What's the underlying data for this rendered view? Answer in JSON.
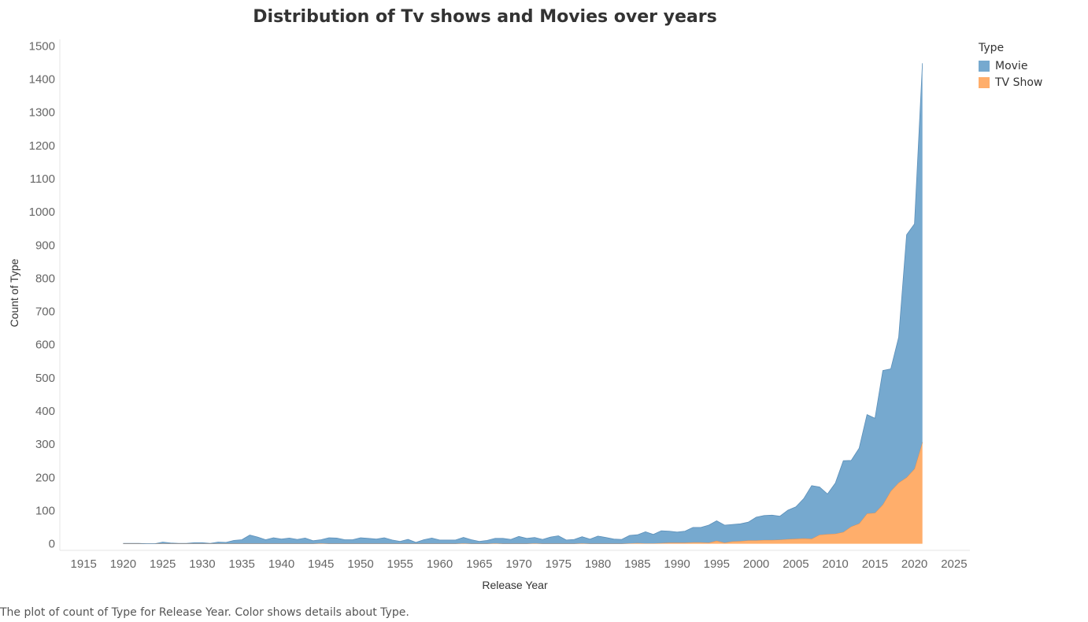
{
  "chart_data": {
    "type": "area",
    "title": "Distribution of Tv shows and Movies over years",
    "xlabel": "Release Year",
    "ylabel": "Count of Type",
    "xlim": [
      1912,
      2027
    ],
    "ylim": [
      -20,
      1520
    ],
    "x_ticks": [
      1915,
      1920,
      1925,
      1930,
      1935,
      1940,
      1945,
      1950,
      1955,
      1960,
      1965,
      1970,
      1975,
      1980,
      1985,
      1990,
      1995,
      2000,
      2005,
      2010,
      2015,
      2020,
      2025
    ],
    "y_ticks": [
      0,
      100,
      200,
      300,
      400,
      500,
      600,
      700,
      800,
      900,
      1000,
      1100,
      1200,
      1300,
      1400,
      1500
    ],
    "stacked": true,
    "grid": false,
    "legend": {
      "title": "Type",
      "placement": "top-right"
    },
    "series": [
      {
        "name": "TV Show",
        "color": "#FFAE6B",
        "x": [
          1920,
          1921,
          1922,
          1923,
          1924,
          1925,
          1926,
          1927,
          1928,
          1929,
          1930,
          1931,
          1932,
          1933,
          1934,
          1935,
          1936,
          1937,
          1938,
          1939,
          1940,
          1941,
          1942,
          1943,
          1944,
          1945,
          1946,
          1947,
          1948,
          1949,
          1950,
          1951,
          1952,
          1953,
          1954,
          1955,
          1956,
          1957,
          1958,
          1959,
          1960,
          1961,
          1962,
          1963,
          1964,
          1965,
          1966,
          1967,
          1968,
          1969,
          1970,
          1971,
          1972,
          1973,
          1974,
          1975,
          1976,
          1977,
          1978,
          1979,
          1980,
          1981,
          1982,
          1983,
          1984,
          1985,
          1986,
          1987,
          1988,
          1989,
          1990,
          1991,
          1992,
          1993,
          1994,
          1995,
          1996,
          1997,
          1998,
          1999,
          2000,
          2001,
          2002,
          2003,
          2004,
          2005,
          2006,
          2007,
          2008,
          2009,
          2010,
          2011,
          2012,
          2013,
          2014,
          2015,
          2016,
          2017,
          2018,
          2019,
          2020,
          2021
        ],
        "values": [
          0,
          0,
          0,
          0,
          0,
          0,
          0,
          0,
          0,
          0,
          0,
          0,
          0,
          0,
          0,
          0,
          0,
          0,
          0,
          0,
          0,
          0,
          0,
          0,
          0,
          1,
          0,
          0,
          0,
          0,
          0,
          0,
          0,
          0,
          0,
          0,
          0,
          0,
          0,
          0,
          0,
          0,
          0,
          1,
          0,
          0,
          0,
          1,
          0,
          0,
          0,
          0,
          1,
          0,
          0,
          0,
          0,
          0,
          1,
          0,
          0,
          0,
          0,
          0,
          1,
          2,
          1,
          1,
          2,
          3,
          3,
          3,
          4,
          4,
          3,
          9,
          3,
          7,
          8,
          10,
          10,
          11,
          11,
          12,
          14,
          15,
          16,
          15,
          27,
          29,
          30,
          35,
          52,
          61,
          91,
          93,
          118,
          159,
          184,
          200,
          226,
          306
        ]
      },
      {
        "name": "Movie",
        "color": "#76A9CF",
        "x": [
          1920,
          1921,
          1922,
          1923,
          1924,
          1925,
          1926,
          1927,
          1928,
          1929,
          1930,
          1931,
          1932,
          1933,
          1934,
          1935,
          1936,
          1937,
          1938,
          1939,
          1940,
          1941,
          1942,
          1943,
          1944,
          1945,
          1946,
          1947,
          1948,
          1949,
          1950,
          1951,
          1952,
          1953,
          1954,
          1955,
          1956,
          1957,
          1958,
          1959,
          1960,
          1961,
          1962,
          1963,
          1964,
          1965,
          1966,
          1967,
          1968,
          1969,
          1970,
          1971,
          1972,
          1973,
          1974,
          1975,
          1976,
          1977,
          1978,
          1979,
          1980,
          1981,
          1982,
          1983,
          1984,
          1985,
          1986,
          1987,
          1988,
          1989,
          1990,
          1991,
          1992,
          1993,
          1994,
          1995,
          1996,
          1997,
          1998,
          1999,
          2000,
          2001,
          2002,
          2003,
          2004,
          2005,
          2006,
          2007,
          2008,
          2009,
          2010,
          2011,
          2012,
          2013,
          2014,
          2015,
          2016,
          2017,
          2018,
          2019,
          2020,
          2021
        ],
        "values": [
          1,
          1,
          1,
          0,
          0,
          5,
          2,
          1,
          1,
          3,
          3,
          1,
          5,
          4,
          10,
          12,
          26,
          20,
          12,
          18,
          14,
          17,
          13,
          17,
          9,
          11,
          18,
          17,
          12,
          12,
          18,
          16,
          14,
          18,
          11,
          7,
          13,
          4,
          12,
          17,
          11,
          11,
          11,
          18,
          12,
          7,
          10,
          15,
          16,
          13,
          22,
          16,
          18,
          13,
          20,
          24,
          11,
          13,
          20,
          14,
          23,
          19,
          14,
          13,
          24,
          25,
          35,
          27,
          37,
          35,
          32,
          35,
          45,
          45,
          53,
          60,
          53,
          51,
          52,
          55,
          70,
          74,
          75,
          71,
          87,
          96,
          120,
          160,
          144,
          121,
          153,
          215,
          199,
          227,
          298,
          285,
          404,
          368,
          438,
          731,
          738,
          1142
        ]
      }
    ]
  },
  "legend": {
    "title": "Type",
    "items": [
      {
        "label": "Movie",
        "color": "#76A9CF"
      },
      {
        "label": "TV Show",
        "color": "#FFAE6B"
      }
    ]
  },
  "caption": "The plot of count of Type for Release Year.  Color shows details about Type."
}
